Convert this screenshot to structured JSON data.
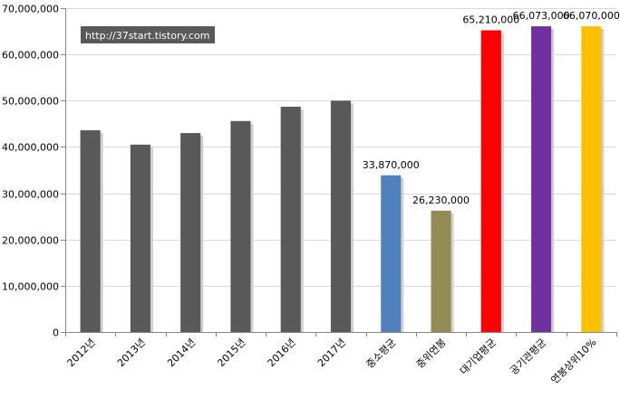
{
  "watermark": "http://37start.tistory.com",
  "chart_data": {
    "type": "bar",
    "title": "",
    "xlabel": "",
    "ylabel": "",
    "ylim": [
      0,
      70000000
    ],
    "yticks": [
      0,
      10000000,
      20000000,
      30000000,
      40000000,
      50000000,
      60000000,
      70000000
    ],
    "ytick_labels": [
      "0",
      "10,000,000",
      "20,000,000",
      "30,000,000",
      "40,000,000",
      "50,000,000",
      "60,000,000",
      "70,000,000"
    ],
    "grid": true,
    "legend": "none",
    "categories": [
      "2012년",
      "2013년",
      "2014년",
      "2015년",
      "2016년",
      "2017년",
      "중소평균",
      "중위연봉",
      "대기업평균",
      "공기관평균",
      "연봉상위10%"
    ],
    "values": [
      43600000,
      40500000,
      43000000,
      45600000,
      48700000,
      50000000,
      33870000,
      26230000,
      65210000,
      66073000,
      66070000
    ],
    "data_labels": [
      "",
      "",
      "",
      "",
      "",
      "",
      "33,870,000",
      "26,230,000",
      "65,210,000",
      "66,073,000",
      "66,070,000"
    ],
    "colors": [
      "#595959",
      "#595959",
      "#595959",
      "#595959",
      "#595959",
      "#595959",
      "#4f81bd",
      "#948a54",
      "#ff0000",
      "#7030a0",
      "#ffc000"
    ]
  }
}
